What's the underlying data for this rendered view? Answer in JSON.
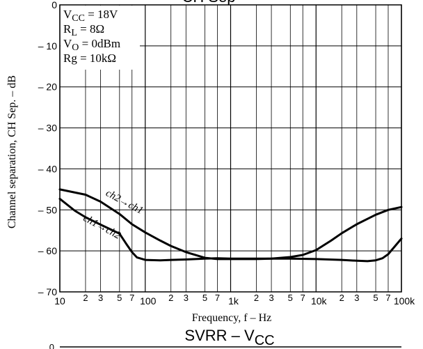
{
  "chart_data": {
    "type": "line",
    "x_scale": "log",
    "xlim": [
      10,
      100000
    ],
    "ylim": [
      -70,
      0
    ],
    "grid": true,
    "xlabel": "Frequency, f  –  Hz",
    "ylabel": "Channel separation, CH Sep.  –  dB",
    "y_ticks": [
      {
        "v": 0,
        "label": "0"
      },
      {
        "v": -10,
        "label": "– 10"
      },
      {
        "v": -20,
        "label": "– 20"
      },
      {
        "v": -30,
        "label": "– 30"
      },
      {
        "v": -40,
        "label": "– 40"
      },
      {
        "v": -50,
        "label": "– 50"
      },
      {
        "v": -60,
        "label": "– 60"
      },
      {
        "v": -70,
        "label": "– 70"
      }
    ],
    "x_ticks_major": [
      {
        "v": 10,
        "label": "10"
      },
      {
        "v": 100,
        "label": "100"
      },
      {
        "v": 1000,
        "label": "1k"
      },
      {
        "v": 10000,
        "label": "10k"
      },
      {
        "v": 100000,
        "label": "100k"
      }
    ],
    "x_ticks_minor": [
      {
        "v": 20,
        "label": "2"
      },
      {
        "v": 30,
        "label": "3"
      },
      {
        "v": 50,
        "label": "5"
      },
      {
        "v": 70,
        "label": "7"
      },
      {
        "v": 200,
        "label": "2"
      },
      {
        "v": 300,
        "label": "3"
      },
      {
        "v": 500,
        "label": "5"
      },
      {
        "v": 700,
        "label": "7"
      },
      {
        "v": 2000,
        "label": "2"
      },
      {
        "v": 3000,
        "label": "3"
      },
      {
        "v": 5000,
        "label": "5"
      },
      {
        "v": 7000,
        "label": "7"
      },
      {
        "v": 20000,
        "label": "2"
      },
      {
        "v": 30000,
        "label": "3"
      },
      {
        "v": 50000,
        "label": "5"
      },
      {
        "v": 70000,
        "label": "7"
      }
    ],
    "conditions": [
      {
        "main": "V",
        "sub": "CC",
        "rest": " = 18V"
      },
      {
        "main": "R",
        "sub": "L",
        "rest": " = 8Ω"
      },
      {
        "main": "V",
        "sub": "O",
        "rest": " = 0dBm"
      },
      {
        "main": "Rg = 10kΩ",
        "sub": "",
        "rest": ""
      }
    ],
    "series": [
      {
        "name": "ch2→ch1",
        "x": [
          10,
          20,
          30,
          50,
          70,
          100,
          150,
          200,
          300,
          500,
          700,
          1000,
          2000,
          3000,
          5000,
          7000,
          10000,
          15000,
          20000,
          30000,
          50000,
          70000,
          100000
        ],
        "y": [
          -45,
          -46.3,
          -48,
          -51,
          -53.5,
          -55.5,
          -57.5,
          -58.8,
          -60.3,
          -61.7,
          -62.0,
          -62.0,
          -62.0,
          -61.9,
          -61.5,
          -61.0,
          -59.8,
          -57.5,
          -55.7,
          -53.5,
          -51.2,
          -50.0,
          -49.3
        ]
      },
      {
        "name": "ch1→ch2",
        "x": [
          10,
          15,
          20,
          30,
          50,
          60,
          70,
          80,
          100,
          150,
          200,
          300,
          500,
          700,
          1000,
          2000,
          5000,
          10000,
          20000,
          30000,
          40000,
          50000,
          60000,
          70000,
          100000
        ],
        "y": [
          -47.3,
          -50.2,
          -51.8,
          -53.6,
          -55.8,
          -58.3,
          -60.3,
          -61.6,
          -62.2,
          -62.3,
          -62.2,
          -62.1,
          -61.9,
          -61.8,
          -61.9,
          -61.9,
          -61.9,
          -62.0,
          -62.2,
          -62.4,
          -62.5,
          -62.3,
          -61.8,
          -60.8,
          -57.0
        ]
      }
    ],
    "annotations": [
      {
        "text": "ch2→ch1",
        "x": 55,
        "y": -48.7,
        "rotate": 28
      },
      {
        "text": "ch1→ch2",
        "x": 30,
        "y": -54.8,
        "rotate": 28
      }
    ],
    "header_text": "CH Sep",
    "bottom_title": {
      "main": "SVRR  –  V",
      "sub": "CC"
    },
    "bottom_axis_zero": "0"
  }
}
